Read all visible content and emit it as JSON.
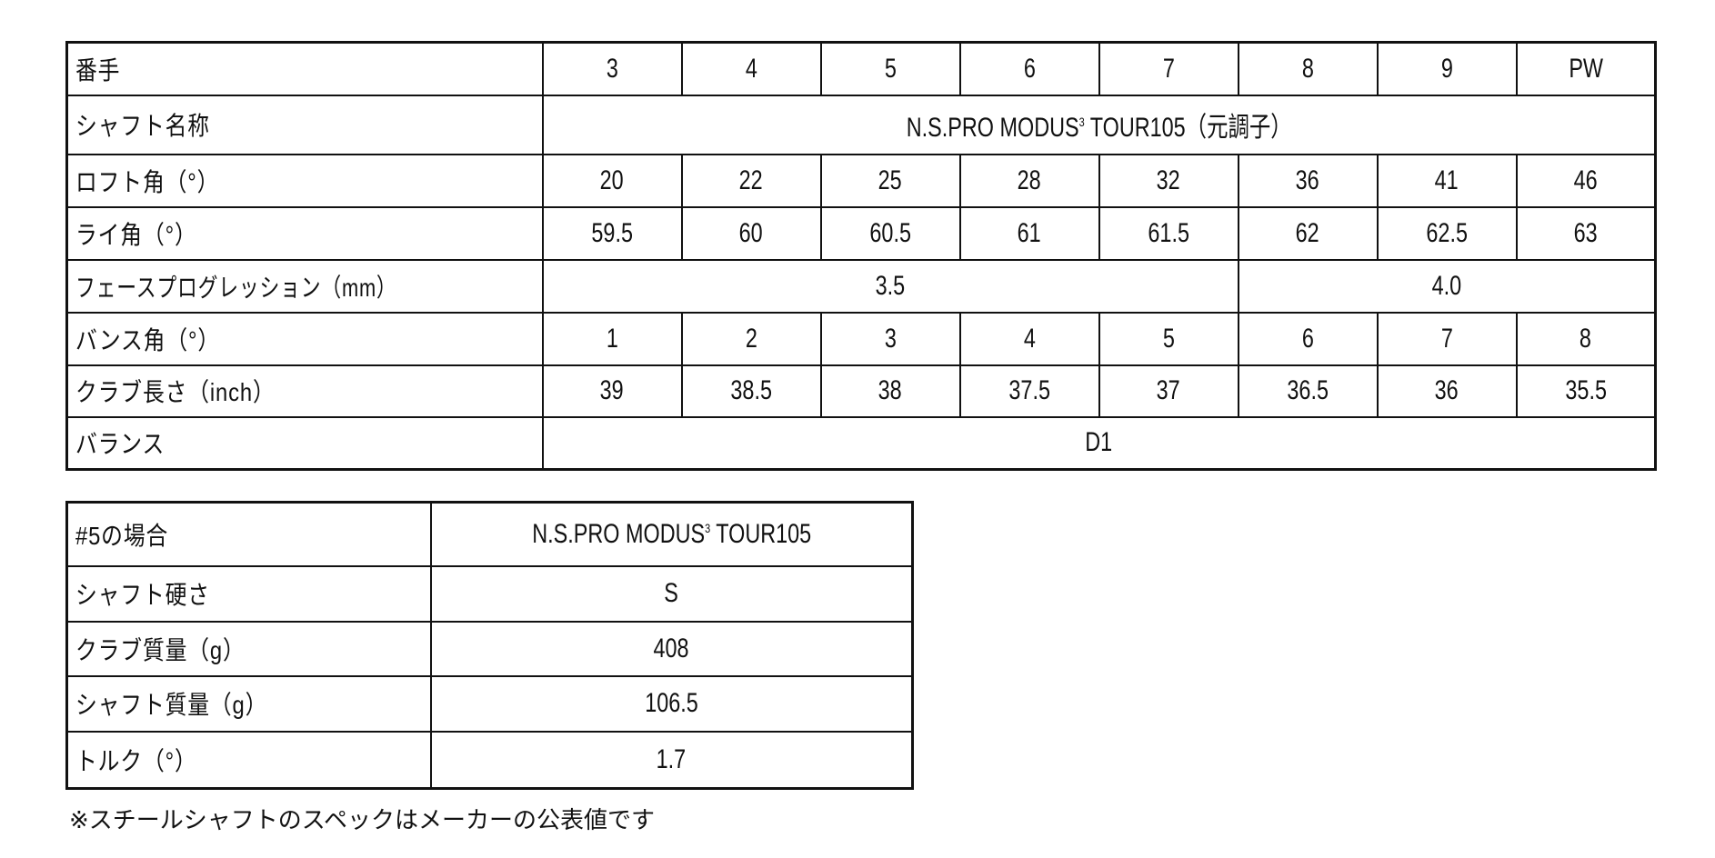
{
  "spec_table": {
    "header": {
      "label": "番手",
      "values": [
        "3",
        "4",
        "5",
        "6",
        "7",
        "8",
        "9",
        "PW"
      ]
    },
    "shaft_name": {
      "label": "シャフト名称",
      "value_pre": "N.S.PRO MODUS",
      "value_sup": "3",
      "value_post": " TOUR105（元調子）"
    },
    "loft": {
      "label": "ロフト角（°）",
      "values": [
        "20",
        "22",
        "25",
        "28",
        "32",
        "36",
        "41",
        "46"
      ]
    },
    "lie": {
      "label": "ライ角（°）",
      "values": [
        "59.5",
        "60",
        "60.5",
        "61",
        "61.5",
        "62",
        "62.5",
        "63"
      ]
    },
    "face_progression": {
      "label": "フェースプログレッション（mm）",
      "values": [
        "3.5",
        "4.0"
      ]
    },
    "bounce": {
      "label": "バンス角（°）",
      "values": [
        "1",
        "2",
        "3",
        "4",
        "5",
        "6",
        "7",
        "8"
      ]
    },
    "length": {
      "label": "クラブ長さ（inch）",
      "values": [
        "39",
        "38.5",
        "38",
        "37.5",
        "37",
        "36.5",
        "36",
        "35.5"
      ]
    },
    "balance": {
      "label": "バランス",
      "value": "D1"
    }
  },
  "shaft_table": {
    "header": {
      "label": "#5の場合",
      "value_pre": "N.S.PRO MODUS",
      "value_sup": "3",
      "value_post": " TOUR105"
    },
    "rows": [
      {
        "label": "シャフト硬さ",
        "value": "S"
      },
      {
        "label": "クラブ質量（g）",
        "value": "408"
      },
      {
        "label": "シャフト質量（g）",
        "value": "106.5"
      },
      {
        "label": "トルク（°）",
        "value": "1.7"
      }
    ]
  },
  "note": "※スチールシャフトのスペックはメーカーの公表値です"
}
